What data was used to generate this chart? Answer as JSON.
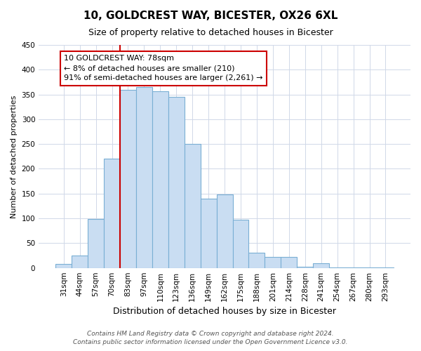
{
  "title": "10, GOLDCREST WAY, BICESTER, OX26 6XL",
  "subtitle": "Size of property relative to detached houses in Bicester",
  "xlabel": "Distribution of detached houses by size in Bicester",
  "ylabel": "Number of detached properties",
  "bar_labels": [
    "31sqm",
    "44sqm",
    "57sqm",
    "70sqm",
    "83sqm",
    "97sqm",
    "110sqm",
    "123sqm",
    "136sqm",
    "149sqm",
    "162sqm",
    "175sqm",
    "188sqm",
    "201sqm",
    "214sqm",
    "228sqm",
    "241sqm",
    "254sqm",
    "267sqm",
    "280sqm",
    "293sqm"
  ],
  "bar_values": [
    8,
    25,
    98,
    221,
    360,
    365,
    356,
    345,
    250,
    140,
    148,
    97,
    31,
    22,
    22,
    2,
    10,
    1,
    1,
    1,
    1
  ],
  "bar_color": "#c9ddf2",
  "bar_edgecolor": "#7aafd4",
  "annotation_title": "10 GOLDCREST WAY: 78sqm",
  "annotation_line1": "← 8% of detached houses are smaller (210)",
  "annotation_line2": "91% of semi-detached houses are larger (2,261) →",
  "annotation_box_facecolor": "#ffffff",
  "annotation_box_edgecolor": "#cc0000",
  "vline_color": "#cc0000",
  "vline_x_index": 3.5,
  "ylim": [
    0,
    450
  ],
  "yticks": [
    0,
    50,
    100,
    150,
    200,
    250,
    300,
    350,
    400,
    450
  ],
  "footer1": "Contains HM Land Registry data © Crown copyright and database right 2024.",
  "footer2": "Contains public sector information licensed under the Open Government Licence v3.0.",
  "background_color": "#ffffff",
  "grid_color": "#d0d8e8",
  "title_fontsize": 11,
  "subtitle_fontsize": 9,
  "ylabel_fontsize": 8,
  "xlabel_fontsize": 9,
  "tick_fontsize": 7.5,
  "footer_fontsize": 6.5,
  "annotation_fontsize": 8
}
